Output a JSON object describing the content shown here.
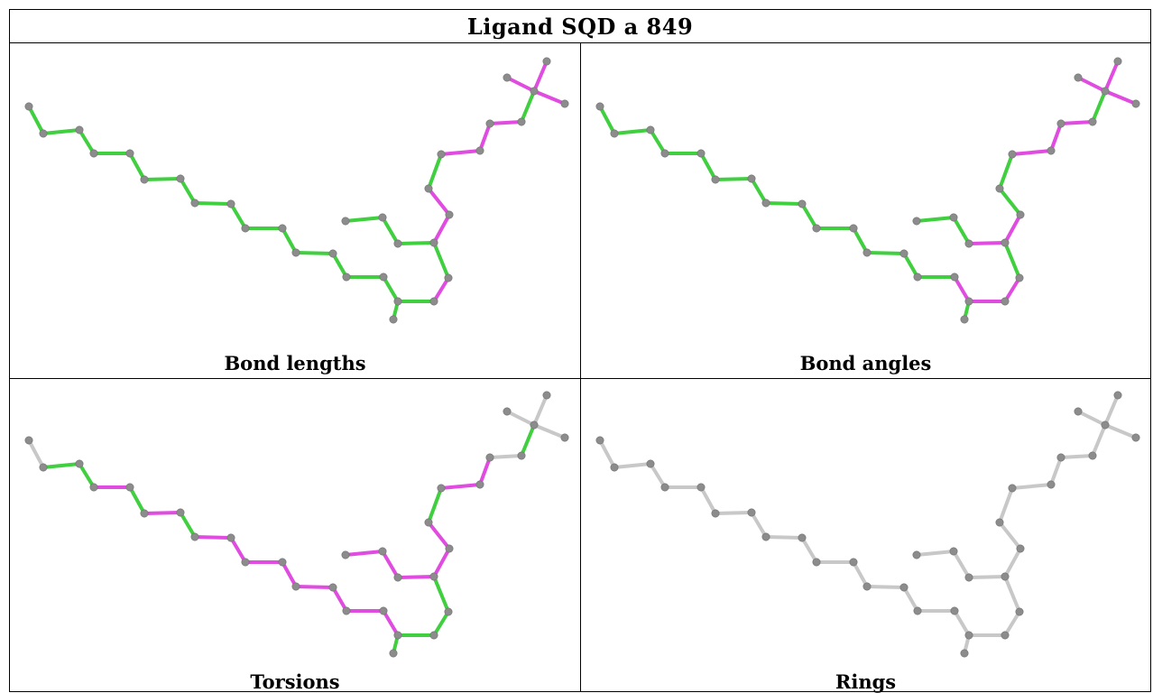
{
  "title": "Ligand SQD a 849",
  "colors": {
    "ok": "#3fcf3f",
    "outlier": "#e04ce0",
    "neutral": "#c8c8c8",
    "atom": "#8c8c8c"
  },
  "panels": [
    {
      "caption": "Bond lengths",
      "magenta": [
        [
          16,
          17
        ],
        [
          17,
          18
        ],
        [
          24,
          25
        ],
        [
          24,
          26
        ],
        [
          24,
          27
        ],
        [
          28,
          29
        ],
        [
          29,
          30
        ],
        [
          30,
          31
        ],
        [
          32,
          33
        ],
        [
          33,
          34
        ]
      ],
      "gray": [
        [
          22,
          23
        ],
        [
          23,
          24
        ]
      ]
    },
    {
      "caption": "Bond angles",
      "magenta": [
        [
          14,
          15
        ],
        [
          15,
          16
        ],
        [
          16,
          17
        ],
        [
          17,
          18
        ],
        [
          21,
          22
        ],
        [
          22,
          23
        ],
        [
          23,
          24
        ],
        [
          24,
          25
        ],
        [
          24,
          26
        ],
        [
          24,
          27
        ],
        [
          28,
          29
        ],
        [
          29,
          30
        ],
        [
          30,
          31
        ]
      ],
      "gray": []
    },
    {
      "caption": "Torsions",
      "magenta": [
        [
          3,
          4
        ],
        [
          5,
          6
        ],
        [
          7,
          8
        ],
        [
          8,
          9
        ],
        [
          9,
          10
        ],
        [
          10,
          11
        ],
        [
          11,
          12
        ],
        [
          12,
          13
        ],
        [
          13,
          14
        ],
        [
          14,
          15
        ],
        [
          19,
          20
        ],
        [
          20,
          21
        ],
        [
          21,
          22
        ],
        [
          22,
          23
        ],
        [
          23,
          24
        ],
        [
          29,
          30
        ],
        [
          30,
          31
        ],
        [
          32,
          33
        ],
        [
          33,
          34
        ]
      ],
      "gray": [
        [
          0,
          1
        ],
        [
          24,
          25
        ],
        [
          24,
          26
        ],
        [
          24,
          27
        ],
        [
          28,
          29
        ]
      ]
    },
    {
      "caption": "Rings",
      "magenta": [],
      "gray": "all"
    }
  ]
}
